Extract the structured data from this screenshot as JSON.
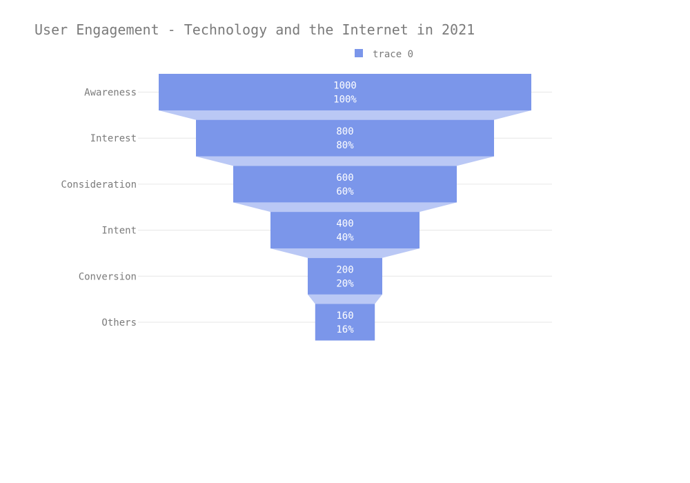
{
  "chart_data": {
    "type": "funnel",
    "title": "User Engagement - Technology and the Internet in 2021",
    "legend": {
      "entries": [
        "trace 0"
      ],
      "position": "top"
    },
    "colors": {
      "bar": "#7b96ea",
      "connector": "#bac8f5",
      "grid": "#e6e6e6",
      "text": "#7a7a7a",
      "label": "#ffffff"
    },
    "categories": [
      "Awareness",
      "Interest",
      "Consideration",
      "Intent",
      "Conversion",
      "Others"
    ],
    "series": [
      {
        "name": "trace 0",
        "values": [
          1000,
          800,
          600,
          400,
          200,
          160
        ],
        "percent_labels": [
          "100%",
          "80%",
          "60%",
          "40%",
          "20%",
          "16%"
        ]
      }
    ],
    "grid": true
  }
}
